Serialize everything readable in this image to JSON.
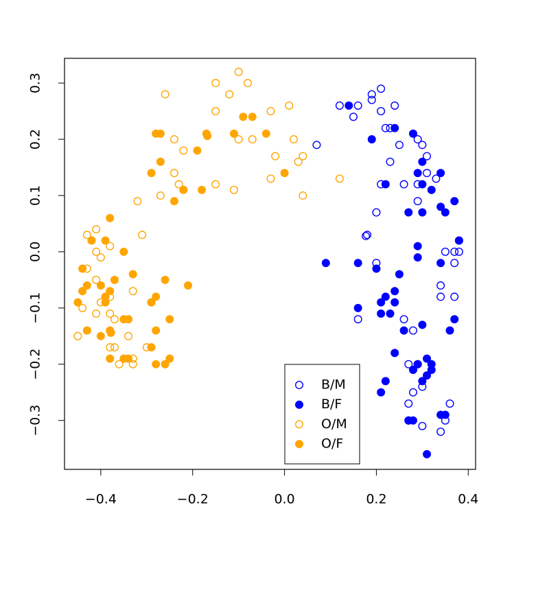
{
  "chart_data": {
    "type": "scatter",
    "xlim": [
      -0.479,
      0.416
    ],
    "ylim": [
      -0.387,
      0.344
    ],
    "xticks": [
      {
        "value": -0.4,
        "label": "−0.4"
      },
      {
        "value": -0.2,
        "label": "−0.2"
      },
      {
        "value": 0.0,
        "label": "0.0"
      },
      {
        "value": 0.2,
        "label": "0.2"
      },
      {
        "value": 0.4,
        "label": "0.4"
      }
    ],
    "yticks": [
      {
        "value": -0.3,
        "label": "−0.3"
      },
      {
        "value": -0.2,
        "label": "−0.2"
      },
      {
        "value": -0.1,
        "label": "−0.1"
      },
      {
        "value": 0.0,
        "label": "0.0"
      },
      0.1,
      0.2,
      0.3
    ],
    "grid": false,
    "legend": "bottom",
    "series": [
      {
        "name": "B/M",
        "color": "#0000ff",
        "marker": "open",
        "x": [
          0.21,
          0.19,
          0.19,
          0.12,
          0.16,
          0.24,
          0.15,
          0.21,
          0.22,
          0.23,
          0.25,
          0.29,
          0.3,
          0.31,
          0.23,
          0.21,
          0.26,
          0.29,
          0.31,
          0.33,
          0.29,
          0.2,
          0.18,
          0.177,
          0.35,
          0.38,
          0.37,
          0.38,
          0.37,
          0.2,
          0.34,
          0.34,
          0.37,
          0.16,
          0.26,
          0.28,
          0.27,
          0.29,
          0.3,
          0.28,
          0.27,
          0.27,
          0.3,
          0.35,
          0.36,
          0.34,
          0.07
        ],
        "values": [
          0.29,
          0.28,
          0.27,
          0.26,
          0.26,
          0.26,
          0.24,
          0.25,
          0.22,
          0.22,
          0.19,
          0.2,
          0.19,
          0.17,
          0.16,
          0.12,
          0.12,
          0.12,
          0.14,
          0.13,
          0.09,
          0.07,
          0.03,
          0.028,
          0.0,
          0.02,
          0.0,
          0.0,
          -0.02,
          -0.02,
          -0.06,
          -0.08,
          -0.08,
          -0.12,
          -0.12,
          -0.14,
          -0.2,
          -0.2,
          -0.24,
          -0.25,
          -0.27,
          -0.3,
          -0.31,
          -0.3,
          -0.27,
          -0.32,
          0.19
        ]
      },
      {
        "name": "B/F",
        "color": "#0000ff",
        "marker": "filled",
        "x": [
          0.14,
          0.24,
          0.28,
          0.19,
          0.3,
          0.29,
          0.34,
          0.22,
          0.3,
          0.32,
          0.37,
          0.34,
          0.35,
          0.27,
          0.3,
          0.38,
          0.29,
          0.29,
          0.34,
          0.09,
          0.16,
          0.2,
          0.25,
          0.24,
          0.22,
          0.21,
          0.24,
          0.16,
          0.21,
          0.23,
          0.3,
          0.37,
          0.26,
          0.36,
          0.24,
          0.31,
          0.32,
          0.32,
          0.29,
          0.28,
          0.31,
          0.3,
          0.22,
          0.21,
          0.34,
          0.35,
          0.27,
          0.28,
          0.31
        ],
        "values": [
          0.26,
          0.22,
          0.21,
          0.2,
          0.16,
          0.14,
          0.14,
          0.12,
          0.12,
          0.11,
          0.09,
          0.08,
          0.07,
          0.07,
          0.07,
          0.02,
          0.01,
          -0.01,
          -0.02,
          -0.02,
          -0.02,
          -0.03,
          -0.04,
          -0.07,
          -0.08,
          -0.09,
          -0.09,
          -0.1,
          -0.11,
          -0.11,
          -0.13,
          -0.12,
          -0.14,
          -0.14,
          -0.18,
          -0.19,
          -0.2,
          -0.21,
          -0.2,
          -0.21,
          -0.22,
          -0.23,
          -0.23,
          -0.25,
          -0.29,
          -0.29,
          -0.3,
          -0.3,
          -0.36
        ]
      },
      {
        "name": "O/M",
        "color": "#ffa500",
        "marker": "open",
        "x": [
          -0.1,
          -0.15,
          -0.08,
          -0.26,
          -0.12,
          0.01,
          -0.03,
          -0.15,
          -0.24,
          -0.1,
          -0.07,
          0.02,
          -0.22,
          -0.02,
          0.04,
          0.03,
          -0.24,
          -0.03,
          0.12,
          -0.23,
          -0.15,
          -0.11,
          0.04,
          -0.27,
          -0.32,
          -0.41,
          -0.43,
          -0.42,
          -0.31,
          -0.38,
          -0.41,
          -0.4,
          -0.43,
          -0.41,
          -0.33,
          -0.38,
          -0.4,
          -0.44,
          -0.41,
          -0.38,
          -0.37,
          -0.34,
          -0.45,
          -0.3,
          -0.38,
          -0.37,
          -0.33,
          -0.36,
          -0.33
        ],
        "values": [
          0.32,
          0.3,
          0.3,
          0.28,
          0.28,
          0.26,
          0.25,
          0.25,
          0.2,
          0.2,
          0.2,
          0.2,
          0.18,
          0.17,
          0.17,
          0.16,
          0.14,
          0.13,
          0.13,
          0.12,
          0.12,
          0.11,
          0.1,
          0.1,
          0.09,
          0.04,
          0.03,
          0.02,
          0.03,
          0.01,
          0.0,
          -0.01,
          -0.03,
          -0.05,
          -0.07,
          -0.08,
          -0.09,
          -0.1,
          -0.11,
          -0.11,
          -0.12,
          -0.15,
          -0.15,
          -0.17,
          -0.17,
          -0.17,
          -0.19,
          -0.2,
          -0.2
        ]
      },
      {
        "name": "O/F",
        "color": "#ffa500",
        "marker": "filled",
        "x": [
          -0.09,
          -0.07,
          -0.28,
          -0.27,
          -0.17,
          -0.168,
          -0.11,
          -0.04,
          -0.27,
          -0.19,
          -0.29,
          0.0,
          -0.18,
          -0.22,
          -0.24,
          -0.38,
          -0.42,
          -0.39,
          -0.35,
          -0.44,
          -0.33,
          -0.26,
          -0.37,
          -0.4,
          -0.43,
          -0.44,
          -0.21,
          -0.38,
          -0.39,
          -0.28,
          -0.29,
          -0.39,
          -0.29,
          -0.45,
          -0.35,
          -0.34,
          -0.25,
          -0.38,
          -0.378,
          -0.28,
          -0.43,
          -0.4,
          -0.29,
          -0.34,
          -0.35,
          -0.38,
          -0.25,
          -0.28,
          -0.26
        ],
        "values": [
          0.24,
          0.24,
          0.21,
          0.21,
          0.21,
          0.206,
          0.21,
          0.21,
          0.16,
          0.18,
          0.14,
          0.14,
          0.11,
          0.11,
          0.09,
          0.06,
          0.02,
          0.02,
          -0.0,
          -0.03,
          -0.04,
          -0.05,
          -0.05,
          -0.06,
          -0.06,
          -0.07,
          -0.06,
          -0.07,
          -0.08,
          -0.08,
          -0.09,
          -0.09,
          -0.09,
          -0.09,
          -0.12,
          -0.12,
          -0.12,
          -0.14,
          -0.144,
          -0.14,
          -0.14,
          -0.15,
          -0.17,
          -0.19,
          -0.19,
          -0.19,
          -0.19,
          -0.2,
          -0.2
        ]
      }
    ]
  }
}
